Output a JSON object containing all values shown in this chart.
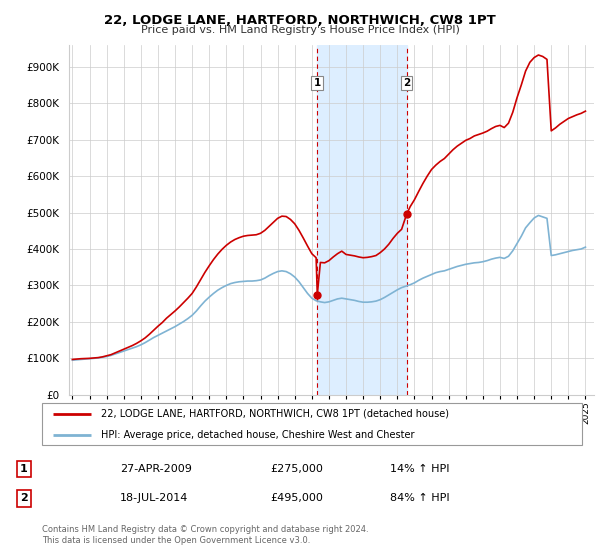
{
  "title": "22, LODGE LANE, HARTFORD, NORTHWICH, CW8 1PT",
  "subtitle": "Price paid vs. HM Land Registry's House Price Index (HPI)",
  "ylabel_ticks": [
    "£0",
    "£100K",
    "£200K",
    "£300K",
    "£400K",
    "£500K",
    "£600K",
    "£700K",
    "£800K",
    "£900K"
  ],
  "ytick_values": [
    0,
    100000,
    200000,
    300000,
    400000,
    500000,
    600000,
    700000,
    800000,
    900000
  ],
  "ylim": [
    0,
    960000
  ],
  "xlim_start": 1994.8,
  "xlim_end": 2025.5,
  "xtick_years": [
    1995,
    1996,
    1997,
    1998,
    1999,
    2000,
    2001,
    2002,
    2003,
    2004,
    2005,
    2006,
    2007,
    2008,
    2009,
    2010,
    2011,
    2012,
    2013,
    2014,
    2015,
    2016,
    2017,
    2018,
    2019,
    2020,
    2021,
    2022,
    2023,
    2024,
    2025
  ],
  "transaction1_x": 2009.32,
  "transaction1_y": 275000,
  "transaction1_label": "27-APR-2009",
  "transaction1_price": "£275,000",
  "transaction1_hpi": "14% ↑ HPI",
  "transaction2_x": 2014.54,
  "transaction2_y": 495000,
  "transaction2_label": "18-JUL-2014",
  "transaction2_price": "£495,000",
  "transaction2_hpi": "84% ↑ HPI",
  "line1_color": "#cc0000",
  "line2_color": "#7fb3d3",
  "shaded_color": "#ddeeff",
  "dashed_color": "#cc0000",
  "legend1_label": "22, LODGE LANE, HARTFORD, NORTHWICH, CW8 1PT (detached house)",
  "legend2_label": "HPI: Average price, detached house, Cheshire West and Chester",
  "footer": "Contains HM Land Registry data © Crown copyright and database right 2024.\nThis data is licensed under the Open Government Licence v3.0.",
  "hpi_data_x": [
    1995.0,
    1995.25,
    1995.5,
    1995.75,
    1996.0,
    1996.25,
    1996.5,
    1996.75,
    1997.0,
    1997.25,
    1997.5,
    1997.75,
    1998.0,
    1998.25,
    1998.5,
    1998.75,
    1999.0,
    1999.25,
    1999.5,
    1999.75,
    2000.0,
    2000.25,
    2000.5,
    2000.75,
    2001.0,
    2001.25,
    2001.5,
    2001.75,
    2002.0,
    2002.25,
    2002.5,
    2002.75,
    2003.0,
    2003.25,
    2003.5,
    2003.75,
    2004.0,
    2004.25,
    2004.5,
    2004.75,
    2005.0,
    2005.25,
    2005.5,
    2005.75,
    2006.0,
    2006.25,
    2006.5,
    2006.75,
    2007.0,
    2007.25,
    2007.5,
    2007.75,
    2008.0,
    2008.25,
    2008.5,
    2008.75,
    2009.0,
    2009.25,
    2009.5,
    2009.75,
    2010.0,
    2010.25,
    2010.5,
    2010.75,
    2011.0,
    2011.25,
    2011.5,
    2011.75,
    2012.0,
    2012.25,
    2012.5,
    2012.75,
    2013.0,
    2013.25,
    2013.5,
    2013.75,
    2014.0,
    2014.25,
    2014.5,
    2014.75,
    2015.0,
    2015.25,
    2015.5,
    2015.75,
    2016.0,
    2016.25,
    2016.5,
    2016.75,
    2017.0,
    2017.25,
    2017.5,
    2017.75,
    2018.0,
    2018.25,
    2018.5,
    2018.75,
    2019.0,
    2019.25,
    2019.5,
    2019.75,
    2020.0,
    2020.25,
    2020.5,
    2020.75,
    2021.0,
    2021.25,
    2021.5,
    2021.75,
    2022.0,
    2022.25,
    2022.5,
    2022.75,
    2023.0,
    2023.25,
    2023.5,
    2023.75,
    2024.0,
    2024.25,
    2024.5,
    2024.75,
    2025.0
  ],
  "hpi_data_y": [
    95000,
    96000,
    97000,
    98000,
    99000,
    100000,
    101000,
    103000,
    105000,
    108000,
    112000,
    116000,
    120000,
    124000,
    128000,
    132000,
    137000,
    143000,
    150000,
    157000,
    163000,
    169000,
    175000,
    181000,
    187000,
    194000,
    201000,
    209000,
    218000,
    230000,
    244000,
    257000,
    268000,
    278000,
    287000,
    294000,
    300000,
    305000,
    308000,
    310000,
    311000,
    312000,
    312000,
    313000,
    315000,
    320000,
    327000,
    333000,
    338000,
    340000,
    338000,
    332000,
    323000,
    310000,
    294000,
    278000,
    265000,
    258000,
    255000,
    253000,
    255000,
    259000,
    263000,
    265000,
    263000,
    261000,
    259000,
    256000,
    254000,
    254000,
    255000,
    257000,
    261000,
    267000,
    274000,
    281000,
    288000,
    294000,
    298000,
    302000,
    307000,
    314000,
    320000,
    325000,
    330000,
    335000,
    338000,
    340000,
    344000,
    348000,
    352000,
    355000,
    358000,
    360000,
    362000,
    363000,
    365000,
    368000,
    372000,
    375000,
    377000,
    374000,
    380000,
    395000,
    415000,
    435000,
    458000,
    472000,
    485000,
    492000,
    488000,
    484000,
    382000,
    384000,
    387000,
    390000,
    393000,
    396000,
    398000,
    400000,
    405000
  ],
  "price_data_x": [
    1995.0,
    1995.25,
    1995.5,
    1995.75,
    1996.0,
    1996.25,
    1996.5,
    1996.75,
    1997.0,
    1997.25,
    1997.5,
    1997.75,
    1998.0,
    1998.25,
    1998.5,
    1998.75,
    1999.0,
    1999.25,
    1999.5,
    1999.75,
    2000.0,
    2000.25,
    2000.5,
    2000.75,
    2001.0,
    2001.25,
    2001.5,
    2001.75,
    2002.0,
    2002.25,
    2002.5,
    2002.75,
    2003.0,
    2003.25,
    2003.5,
    2003.75,
    2004.0,
    2004.25,
    2004.5,
    2004.75,
    2005.0,
    2005.25,
    2005.5,
    2005.75,
    2006.0,
    2006.25,
    2006.5,
    2006.75,
    2007.0,
    2007.25,
    2007.5,
    2007.75,
    2008.0,
    2008.25,
    2008.5,
    2008.75,
    2009.0,
    2009.25,
    2009.32,
    2009.5,
    2009.75,
    2010.0,
    2010.25,
    2010.5,
    2010.75,
    2011.0,
    2011.25,
    2011.5,
    2011.75,
    2012.0,
    2012.25,
    2012.5,
    2012.75,
    2013.0,
    2013.25,
    2013.5,
    2013.75,
    2014.0,
    2014.25,
    2014.54,
    2014.75,
    2015.0,
    2015.25,
    2015.5,
    2015.75,
    2016.0,
    2016.25,
    2016.5,
    2016.75,
    2017.0,
    2017.25,
    2017.5,
    2017.75,
    2018.0,
    2018.25,
    2018.5,
    2018.75,
    2019.0,
    2019.25,
    2019.5,
    2019.75,
    2020.0,
    2020.25,
    2020.5,
    2020.75,
    2021.0,
    2021.25,
    2021.5,
    2021.75,
    2022.0,
    2022.25,
    2022.5,
    2022.75,
    2023.0,
    2023.25,
    2023.5,
    2023.75,
    2024.0,
    2024.25,
    2024.5,
    2024.75,
    2025.0
  ],
  "price_data_y": [
    97000,
    98000,
    99000,
    99500,
    100000,
    101000,
    102000,
    104000,
    107000,
    110000,
    115000,
    120000,
    125000,
    130000,
    135000,
    141000,
    148000,
    156000,
    166000,
    177000,
    188000,
    198000,
    210000,
    220000,
    230000,
    241000,
    253000,
    265000,
    278000,
    296000,
    316000,
    336000,
    354000,
    371000,
    386000,
    399000,
    410000,
    419000,
    426000,
    431000,
    435000,
    437000,
    438000,
    439000,
    443000,
    451000,
    462000,
    473000,
    484000,
    490000,
    489000,
    481000,
    469000,
    451000,
    430000,
    408000,
    387000,
    376000,
    275000,
    363000,
    362000,
    368000,
    378000,
    387000,
    394000,
    385000,
    383000,
    381000,
    378000,
    376000,
    377000,
    379000,
    382000,
    390000,
    400000,
    413000,
    429000,
    443000,
    454000,
    495000,
    516000,
    535000,
    558000,
    580000,
    600000,
    618000,
    630000,
    640000,
    648000,
    660000,
    672000,
    682000,
    690000,
    698000,
    703000,
    710000,
    714000,
    718000,
    723000,
    730000,
    736000,
    739000,
    733000,
    745000,
    775000,
    815000,
    850000,
    888000,
    912000,
    925000,
    932000,
    928000,
    920000,
    724000,
    732000,
    742000,
    750000,
    758000,
    763000,
    768000,
    772000,
    778000
  ]
}
